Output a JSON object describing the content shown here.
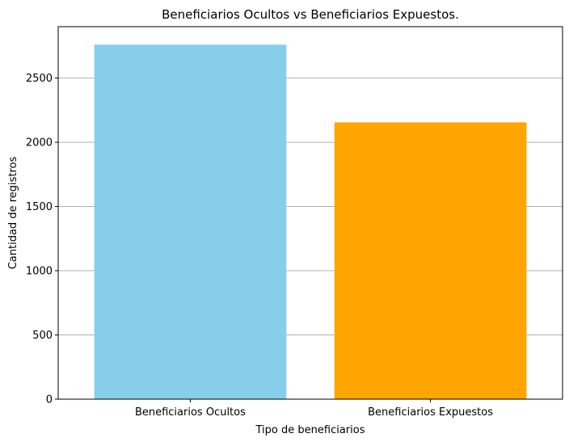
{
  "chart_data": {
    "type": "bar",
    "title": "Beneficiarios Ocultos vs Beneficiarios Expuestos.",
    "xlabel": "Tipo de beneficiarios",
    "ylabel": "Cantidad de registros",
    "categories": [
      "Beneficiarios Ocultos",
      "Beneficiarios Expuestos"
    ],
    "values": [
      2760,
      2155
    ],
    "colors": [
      "#87CEEB",
      "#FFA500"
    ],
    "ylim": [
      0,
      2900
    ],
    "yticks": [
      0,
      500,
      1000,
      1500,
      2000,
      2500
    ],
    "grid": "y-major",
    "legend": "none"
  }
}
